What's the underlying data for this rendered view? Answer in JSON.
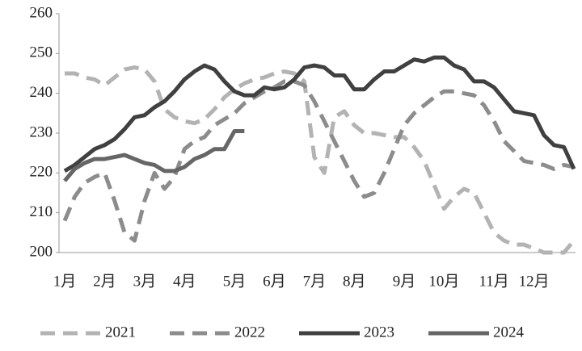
{
  "chart_data": {
    "type": "line",
    "categories": [
      "1月",
      null,
      null,
      null,
      "2月",
      null,
      null,
      null,
      "3月",
      null,
      null,
      null,
      "4月",
      null,
      null,
      null,
      null,
      "5月",
      null,
      null,
      null,
      "6月",
      null,
      null,
      null,
      "7月",
      null,
      null,
      null,
      "8月",
      null,
      null,
      null,
      null,
      "9月",
      null,
      null,
      null,
      "10月",
      null,
      null,
      null,
      null,
      "11月",
      null,
      null,
      null,
      "12月",
      null,
      null,
      null,
      null
    ],
    "ylim": [
      200,
      260
    ],
    "yticks": [
      200,
      210,
      220,
      230,
      240,
      250,
      260
    ],
    "grid": false,
    "legend": "bottom",
    "series": [
      {
        "name": "2021",
        "color": "#b3b3b3",
        "dash": true,
        "values": [
          245,
          245,
          244,
          243.5,
          242,
          244,
          246,
          246.5,
          246,
          243,
          236,
          234,
          233,
          232.5,
          233.5,
          236,
          239,
          241,
          242.5,
          243.5,
          244,
          245,
          245.5,
          245,
          243,
          224,
          220,
          234,
          235.5,
          232,
          230,
          230,
          229.5,
          229,
          229,
          226.5,
          223,
          217,
          211,
          214,
          216,
          215,
          210,
          205,
          203,
          202,
          202,
          201,
          200,
          200,
          200,
          203
        ]
      },
      {
        "name": "2022",
        "color": "#8c8c8c",
        "dash": true,
        "values": [
          208,
          214,
          217.5,
          219,
          220,
          213,
          205,
          203,
          213,
          220,
          216,
          219,
          226,
          228,
          229,
          232,
          233.5,
          235,
          237.5,
          239,
          240.5,
          241.5,
          243,
          243,
          242,
          238,
          233,
          228,
          223,
          218,
          214,
          215,
          220,
          226,
          232,
          235,
          237,
          239,
          240.5,
          240.5,
          240,
          239.5,
          237,
          233,
          228,
          225.5,
          223,
          222.5,
          222,
          221,
          222,
          221.5
        ]
      },
      {
        "name": "2023",
        "color": "#404040",
        "dash": false,
        "values": [
          220.5,
          222,
          224,
          226,
          227,
          228.5,
          231,
          234,
          234.5,
          236.5,
          238,
          240.5,
          243.5,
          245.5,
          247,
          246,
          243,
          240.5,
          239.5,
          239.5,
          241.5,
          241,
          241.5,
          243.5,
          246.5,
          247,
          246.5,
          244.5,
          244.5,
          241,
          241,
          243.5,
          245.5,
          245.5,
          247,
          248.5,
          248,
          249,
          249,
          247,
          246,
          243,
          243,
          241.5,
          238.5,
          235.5,
          235,
          234.5,
          229.5,
          227,
          226.5,
          221
        ]
      },
      {
        "name": "2024",
        "color": "#666666",
        "dash": false,
        "values": [
          218,
          221,
          222.5,
          223.5,
          223.5,
          224,
          224.5,
          223.5,
          222.5,
          222,
          220.5,
          220.5,
          221.5,
          223.5,
          224.5,
          226,
          226,
          230.5,
          230.5,
          null,
          null,
          null,
          null,
          null,
          null,
          null,
          null,
          null,
          null,
          null,
          null,
          null,
          null,
          null,
          null,
          null,
          null,
          null,
          null,
          null,
          null,
          null,
          null,
          null,
          null,
          null,
          null,
          null,
          null,
          null,
          null,
          null
        ]
      }
    ]
  }
}
